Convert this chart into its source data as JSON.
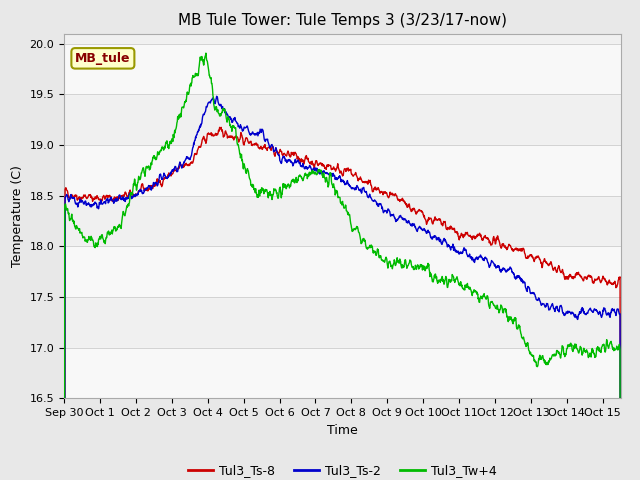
{
  "title": "MB Tule Tower: Tule Temps 3 (3/23/17-now)",
  "xlabel": "Time",
  "ylabel": "Temperature (C)",
  "ylim": [
    16.5,
    20.1
  ],
  "xlim": [
    0,
    15.5
  ],
  "xtick_labels": [
    "Sep 30",
    "Oct 1",
    "Oct 2",
    "Oct 3",
    "Oct 4",
    "Oct 5",
    "Oct 6",
    "Oct 7",
    "Oct 8",
    "Oct 9",
    "Oct 10",
    "Oct 11",
    "Oct 12",
    "Oct 13",
    "Oct 14",
    "Oct 15"
  ],
  "xtick_positions": [
    0,
    1,
    2,
    3,
    4,
    5,
    6,
    7,
    8,
    9,
    10,
    11,
    12,
    13,
    14,
    15
  ],
  "ytick_labels": [
    "16.5",
    "17.0",
    "17.5",
    "18.0",
    "18.5",
    "19.0",
    "19.5",
    "20.0"
  ],
  "ytick_positions": [
    16.5,
    17.0,
    17.5,
    18.0,
    18.5,
    19.0,
    19.5,
    20.0
  ],
  "line_colors": [
    "#cc0000",
    "#0000cc",
    "#00bb00"
  ],
  "line_labels": [
    "Tul3_Ts-8",
    "Tul3_Ts-2",
    "Tul3_Tw+4"
  ],
  "legend_label": "MB_tule",
  "legend_bg": "#ffffcc",
  "legend_edge": "#999900",
  "legend_text_color": "#880000",
  "fig_bg": "#e8e8e8",
  "plot_bg": "#f0f0f0",
  "title_fontsize": 11,
  "axis_fontsize": 9,
  "tick_fontsize": 8,
  "legend_fontsize": 9
}
